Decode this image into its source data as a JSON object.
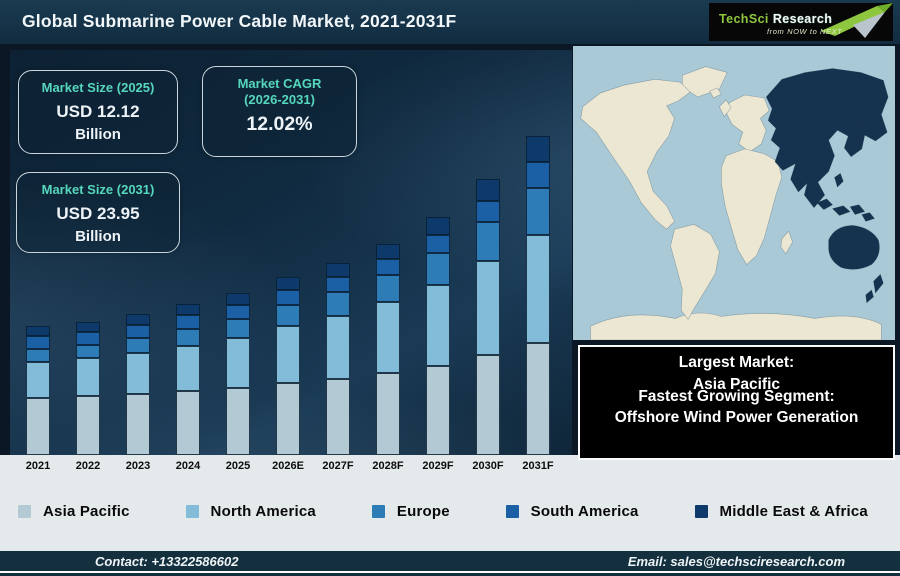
{
  "header": {
    "title": "Global Submarine Power Cable Market, 2021-2031F",
    "logo": {
      "brand_primary": "TechSci",
      "brand_secondary": "Research",
      "tagline": "from NOW to NEXT",
      "green": "#8ec63f"
    }
  },
  "info_boxes": [
    {
      "title": "Market Size (2025)",
      "value": "USD 12.12",
      "unit": "Billion"
    },
    {
      "title": "Market CAGR (2026-2031)",
      "value": "12.02%",
      "unit": ""
    },
    {
      "title": "Market Size (2031)",
      "value": "USD 23.95",
      "unit": "Billion"
    }
  ],
  "highlight_box": {
    "lines": [
      "Largest Market:",
      "Asia Pacific",
      "Fastest Growing Segment:",
      "Offshore Wind Power Generation"
    ]
  },
  "map": {
    "highlight_region": "Asia Pacific",
    "ocean_color": "#a9c9d7",
    "land_color": "#ebe7d3",
    "highlight_color": "#15324e"
  },
  "footer": {
    "contact": "Contact: +13322586602",
    "email": "Email: sales@techsciresearch.com"
  },
  "colors": {
    "header_bg": "#153247",
    "panel_bg": "#102a40",
    "accent_teal": "#56d7bd",
    "strip_bg": "#e4e9eb",
    "footer_bg": "#14303f"
  },
  "chart_data": {
    "type": "bar",
    "stacked": true,
    "title": "Global Submarine Power Cable Market, 2021-2031F",
    "unit": "USD Billion",
    "categories": [
      "2021",
      "2022",
      "2023",
      "2024",
      "2025",
      "2026E",
      "2027F",
      "2028F",
      "2029F",
      "2030F",
      "2031F"
    ],
    "series": [
      {
        "name": "Asia Pacific",
        "color": "#b3c9d3",
        "values": [
          4.25,
          4.4,
          4.55,
          4.8,
          5.05,
          5.4,
          5.75,
          6.15,
          6.7,
          7.55,
          8.4
        ]
      },
      {
        "name": "North America",
        "color": "#82bcd9",
        "values": [
          2.7,
          2.85,
          3.05,
          3.4,
          3.75,
          4.25,
          4.75,
          5.35,
          6.1,
          7.1,
          8.15
        ]
      },
      {
        "name": "Europe",
        "color": "#2d7cb5",
        "values": [
          0.95,
          1.0,
          1.1,
          1.25,
          1.4,
          1.6,
          1.8,
          2.05,
          2.4,
          2.9,
          3.5
        ]
      },
      {
        "name": "South America",
        "color": "#1b5fa5",
        "values": [
          0.95,
          0.97,
          1.0,
          1.02,
          1.05,
          1.1,
          1.15,
          1.2,
          1.35,
          1.6,
          1.95
        ]
      },
      {
        "name": "Middle East & Africa",
        "color": "#0d3a6b",
        "values": [
          0.75,
          0.78,
          0.8,
          0.83,
          0.87,
          0.95,
          1.05,
          1.15,
          1.35,
          1.65,
          1.95
        ]
      }
    ],
    "totals": [
      9.6,
      10.0,
      10.5,
      11.3,
      12.12,
      13.3,
      14.5,
      15.9,
      17.9,
      20.8,
      23.95
    ],
    "legend_position": "bottom",
    "x_axis_labels_visible": true,
    "y_axis_visible": false,
    "grid": false
  }
}
